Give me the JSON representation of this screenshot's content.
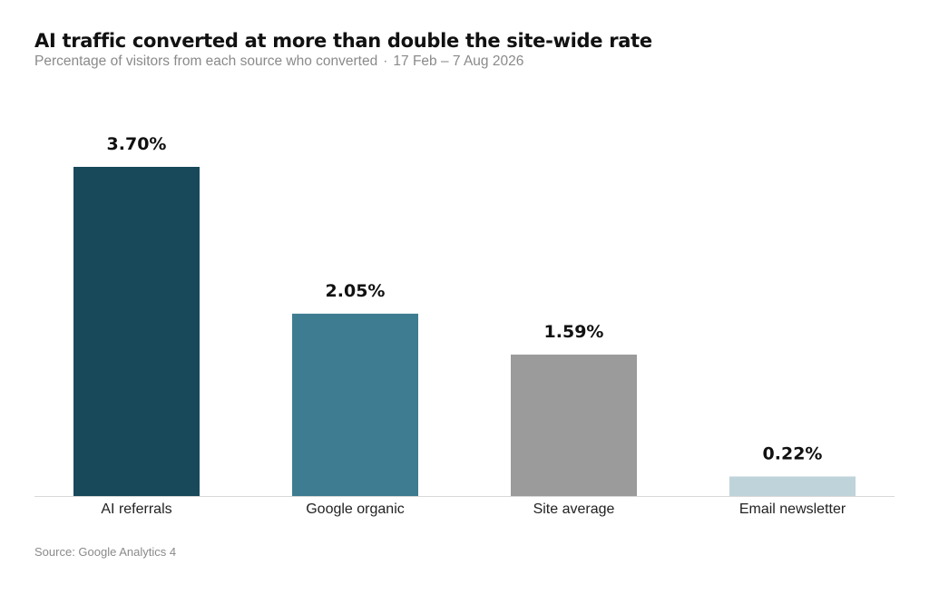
{
  "header": {
    "title": "AI traffic converted at more than double the site-wide rate",
    "subtitle": "Percentage of visitors from each source who converted",
    "separator": "·",
    "date_range": "17 Feb – 7 Aug 2026"
  },
  "footer": {
    "source": "Source: Google Analytics 4"
  },
  "chart_data": {
    "type": "bar",
    "title": "AI traffic converted at more than double the site-wide rate",
    "subtitle": "Percentage of visitors from each source who converted · 17 Feb – 7 Aug 2026",
    "categories": [
      "AI referrals",
      "Google organic",
      "Site average",
      "Email newsletter"
    ],
    "values": [
      3.7,
      2.05,
      1.59,
      0.22
    ],
    "value_labels": [
      "3.70%",
      "2.05%",
      "1.59%",
      "0.22%"
    ],
    "colors": [
      "#17495a",
      "#3e7d91",
      "#9b9b9b",
      "#bfd3da"
    ],
    "ylim": [
      0,
      3.7
    ],
    "xlabel": "",
    "ylabel": "",
    "grid": false,
    "legend": "none",
    "baseline_color": "#d9d9d9"
  }
}
